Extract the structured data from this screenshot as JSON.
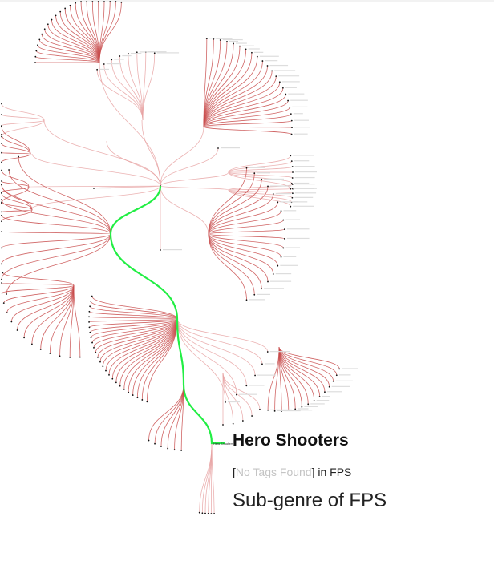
{
  "selected": {
    "title": "Hero Shooters",
    "tags_open": "[",
    "tags_missing": "No Tags Found",
    "tags_close": "]",
    "tags_suffix": " in FPS",
    "description": "Sub-genre of FPS",
    "node_label": "Hero Shooters"
  },
  "colors": {
    "edge": "#e8a3a3",
    "edge_dark": "#c84a4a",
    "highlight_path": "#22ee44",
    "muted_text": "#c4c4c4"
  }
}
